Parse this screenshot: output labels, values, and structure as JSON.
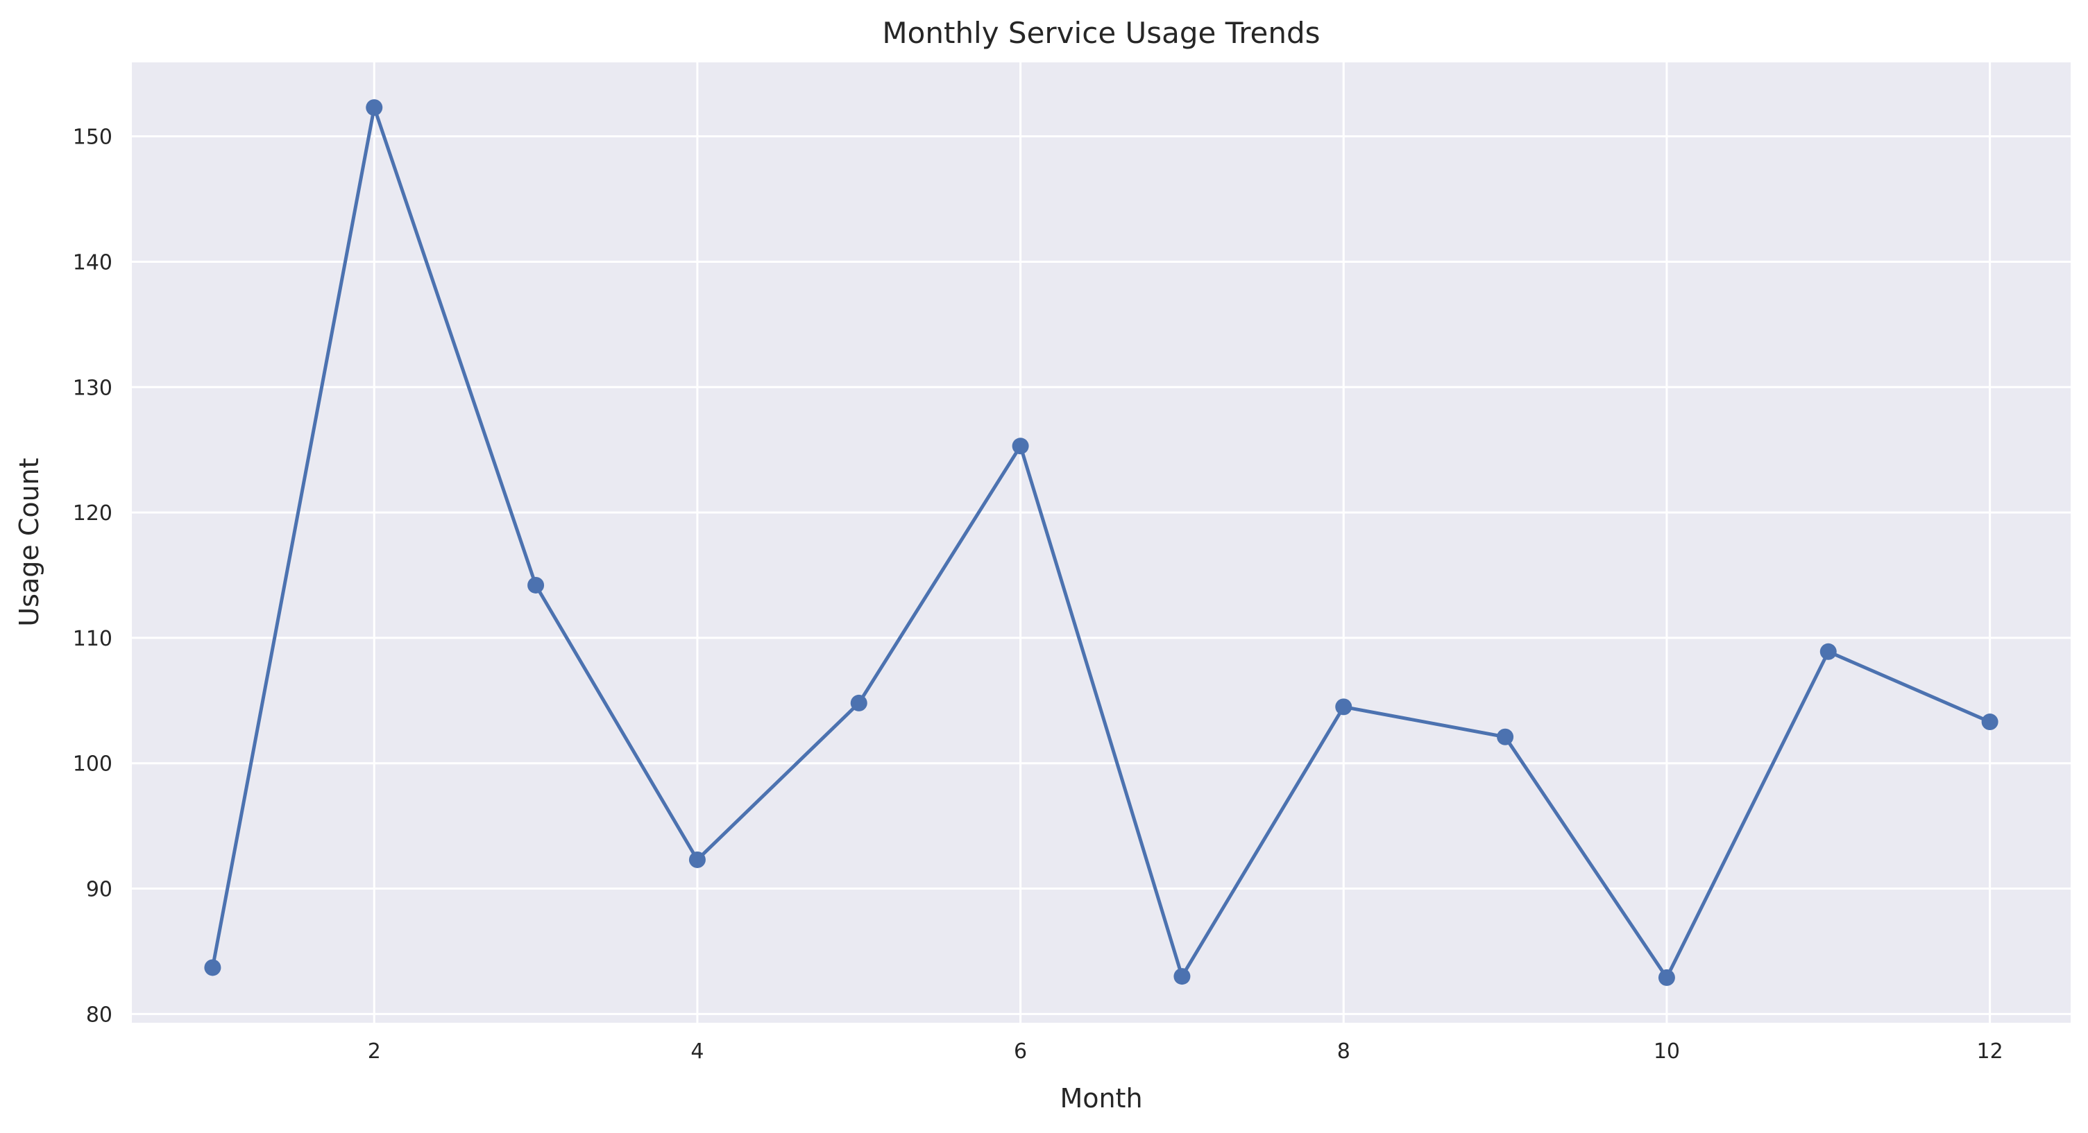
{
  "chart_data": {
    "type": "line",
    "title": "Monthly Service Usage Trends",
    "xlabel": "Month",
    "ylabel": "Usage Count",
    "xlim": [
      0.5,
      12.5
    ],
    "ylim": [
      79.3,
      155.9
    ],
    "xticks": [
      2,
      4,
      6,
      8,
      10,
      12
    ],
    "yticks": [
      80,
      90,
      100,
      110,
      120,
      130,
      140,
      150
    ],
    "grid": true,
    "legend": "none",
    "series": [
      {
        "color": "#4c72b0",
        "marker": "circle",
        "x": [
          1,
          2,
          3,
          4,
          5,
          6,
          7,
          8,
          9,
          10,
          11,
          12
        ],
        "values": [
          83.7,
          152.3,
          114.2,
          92.3,
          104.8,
          125.3,
          83.0,
          104.5,
          102.1,
          82.9,
          108.9,
          103.3
        ]
      }
    ]
  },
  "colors": {
    "plot_background": "#eaeaf2",
    "grid": "#ffffff",
    "line": "#4c72b0",
    "text": "#262626"
  }
}
